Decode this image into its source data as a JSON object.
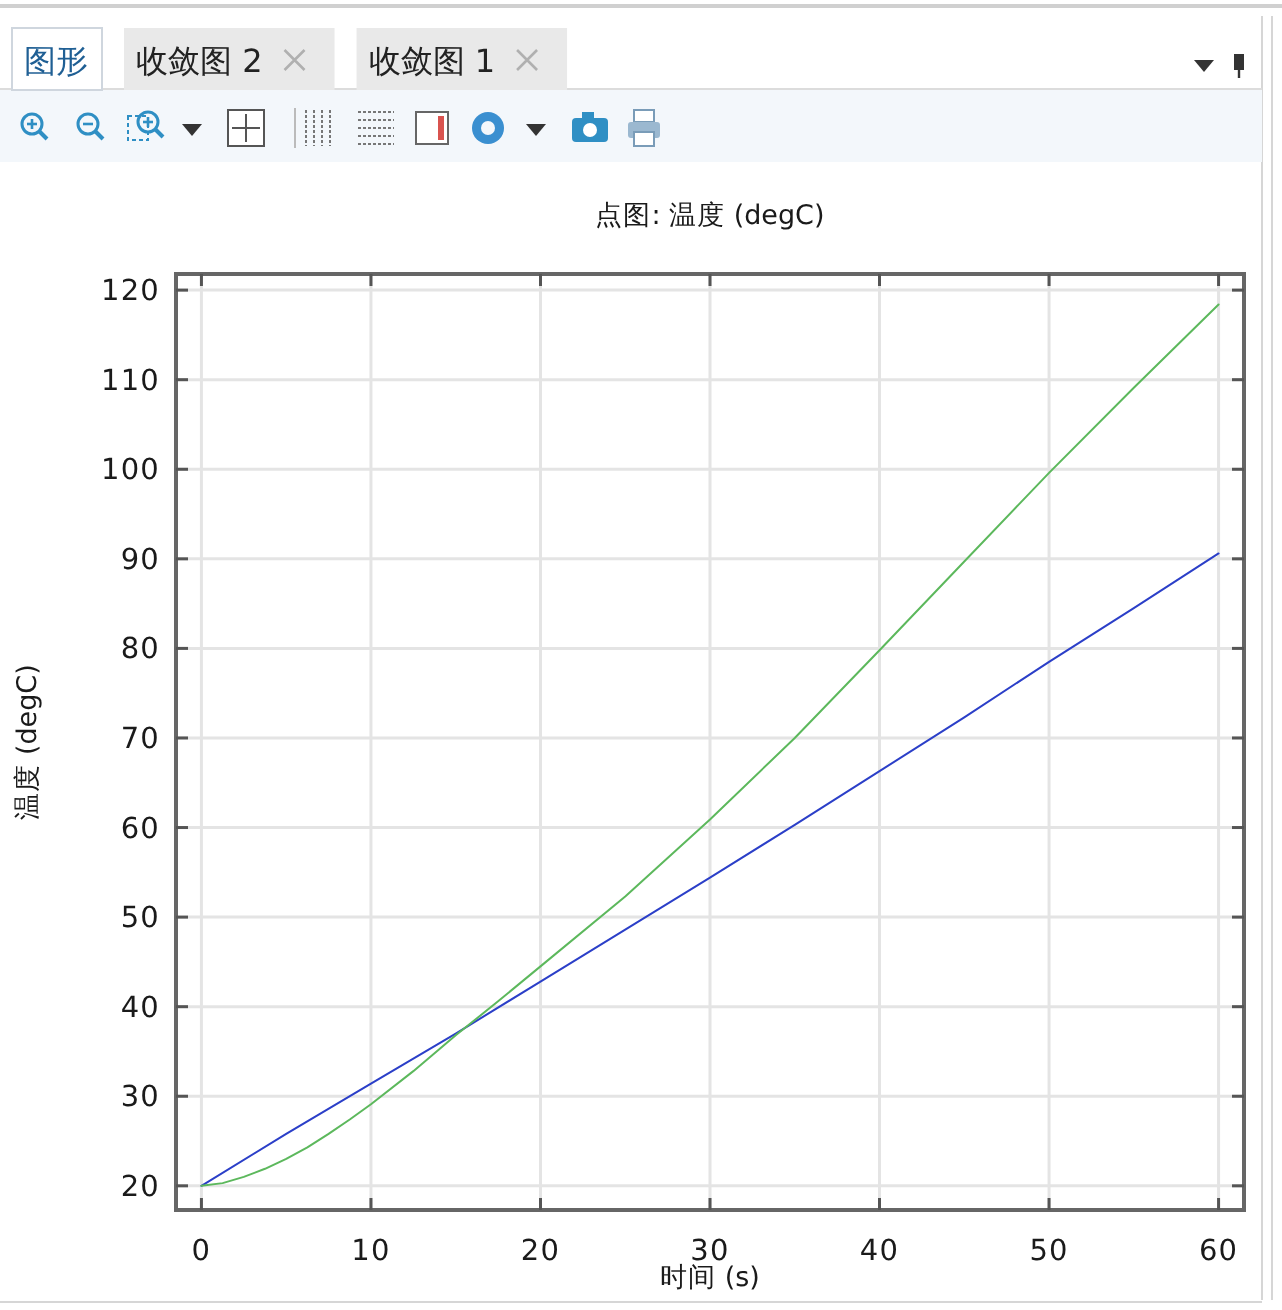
{
  "chart_data": {
    "type": "line",
    "title": "点图: 温度 (degC)",
    "xlabel": "时间 (s)",
    "ylabel": "温度 (degC)",
    "annotations": [
      "图形",
      "收敛图 2",
      "收敛图 1"
    ],
    "xlim": [
      -1.5,
      61.5
    ],
    "ylim": [
      17.3,
      121.8
    ],
    "xticks": [
      0,
      10,
      20,
      30,
      40,
      50,
      60
    ],
    "yticks": [
      20,
      30,
      40,
      50,
      60,
      70,
      80,
      90,
      100,
      110,
      120
    ],
    "grid": true,
    "line_style": "solid",
    "series": [
      {
        "color": "#2b3fc8",
        "x": [
          0,
          5,
          10,
          15,
          20,
          25,
          30,
          35,
          40,
          45,
          50,
          55,
          60
        ],
        "values": [
          20,
          25.8,
          31.4,
          37.0,
          42.8,
          48.6,
          54.4,
          60.3,
          66.3,
          72.3,
          78.5,
          84.5,
          90.6
        ]
      },
      {
        "color": "#5cb85c",
        "x": [
          0,
          1.25,
          2.5,
          3.75,
          5,
          6.25,
          7.5,
          8.75,
          10,
          12.5,
          15,
          17.5,
          20,
          25,
          30,
          35,
          40,
          45,
          50,
          55,
          60
        ],
        "values": [
          20,
          20.3,
          21.0,
          21.9,
          23.0,
          24.3,
          25.8,
          27.4,
          29.1,
          32.8,
          36.8,
          40.6,
          44.5,
          52.3,
          60.9,
          70.0,
          79.8,
          89.7,
          99.6,
          109.1,
          118.4
        ]
      }
    ]
  }
}
